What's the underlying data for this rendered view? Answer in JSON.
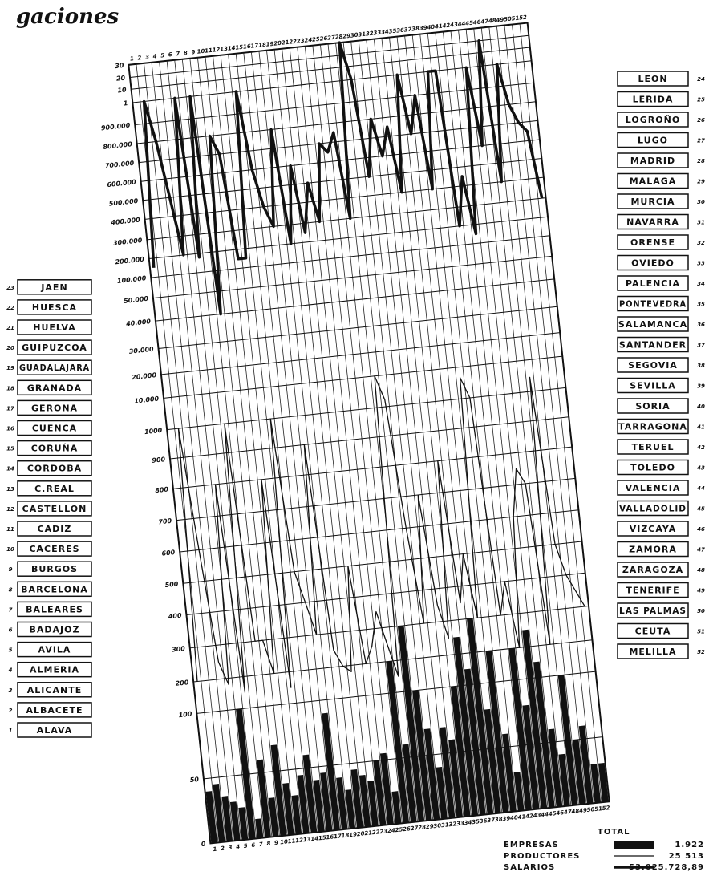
{
  "title_fragment": "gaciones",
  "chart_data": {
    "type": "combo",
    "categories": [
      1,
      2,
      3,
      4,
      5,
      6,
      7,
      8,
      9,
      10,
      11,
      12,
      13,
      14,
      15,
      16,
      17,
      18,
      19,
      20,
      21,
      22,
      23,
      24,
      25,
      26,
      27,
      28,
      29,
      30,
      31,
      32,
      33,
      34,
      35,
      36,
      37,
      38,
      39,
      40,
      41,
      42,
      43,
      44,
      45,
      46,
      47,
      48,
      49,
      50,
      51,
      52
    ],
    "yticks": [
      {
        "value": 30000000,
        "label": "30"
      },
      {
        "value": 20000000,
        "label": "20"
      },
      {
        "value": 10000000,
        "label": "10"
      },
      {
        "value": 1000000,
        "label": "1"
      },
      {
        "value": 900000,
        "label": "900.000"
      },
      {
        "value": 800000,
        "label": "800.000"
      },
      {
        "value": 700000,
        "label": "700.000"
      },
      {
        "value": 600000,
        "label": "600.000"
      },
      {
        "value": 500000,
        "label": "500.000"
      },
      {
        "value": 400000,
        "label": "400.000"
      },
      {
        "value": 300000,
        "label": "300.000"
      },
      {
        "value": 200000,
        "label": "200.000"
      },
      {
        "value": 100000,
        "label": "100.000"
      },
      {
        "value": 50000,
        "label": "50.000"
      },
      {
        "value": 40000,
        "label": "40.000"
      },
      {
        "value": 30000,
        "label": "30.000"
      },
      {
        "value": 20000,
        "label": "20.000"
      },
      {
        "value": 10000,
        "label": "10.000"
      },
      1000,
      900,
      800,
      700,
      600,
      500,
      400,
      300,
      200,
      100,
      50,
      0
    ],
    "grid": true,
    "series": [
      {
        "name": "EMPRESAS",
        "kind": "bar",
        "color": "#111",
        "total": "1.922",
        "values": [
          40,
          45,
          35,
          30,
          25,
          100,
          15,
          60,
          30,
          70,
          40,
          30,
          45,
          60,
          40,
          45,
          90,
          40,
          30,
          45,
          40,
          35,
          50,
          55,
          25,
          200,
          60,
          300,
          100,
          70,
          40,
          70,
          60,
          100,
          250,
          150,
          300,
          80,
          200,
          60,
          30,
          200,
          80,
          250,
          150,
          60,
          40,
          100,
          50,
          60,
          30,
          30
        ]
      },
      {
        "name": "PRODUCTORES",
        "kind": "thin-line",
        "color": "#111",
        "total": "25 513",
        "values": [
          200,
          1000,
          600,
          250,
          180,
          800,
          150,
          1000,
          300,
          300,
          200,
          800,
          150,
          1000,
          500,
          400,
          300,
          900,
          250,
          200,
          180,
          500,
          200,
          250,
          350,
          250,
          150,
          10000,
          3000,
          600,
          300,
          700,
          350,
          250,
          800,
          350,
          500,
          300,
          7000,
          1000,
          300,
          400,
          200,
          600,
          750,
          700,
          200,
          5000,
          500,
          400,
          350,
          300
        ]
      },
      {
        "name": "SALARIOS",
        "kind": "thick-line",
        "color": "#111",
        "total": "53.025.728,89",
        "values": [
          150000,
          1000000,
          800000,
          500000,
          200000,
          1000000,
          180000,
          1000000,
          40000,
          800000,
          700000,
          150000,
          150000,
          1200000,
          600000,
          400000,
          300000,
          800000,
          200000,
          600000,
          250000,
          500000,
          300000,
          700000,
          650000,
          750000,
          300000,
          30000000,
          1500000,
          500000,
          800000,
          600000,
          750000,
          400000,
          1000000,
          700000,
          900000,
          400000,
          1000000,
          1000000,
          200000,
          450000,
          150000,
          1000000,
          600000,
          20000000,
          400000,
          1200000,
          800000,
          700000,
          650000,
          300000
        ]
      }
    ],
    "legend_heading": "TOTAL"
  },
  "provinces": [
    {
      "number": 1,
      "name": "ALAVA"
    },
    {
      "number": 2,
      "name": "ALBACETE"
    },
    {
      "number": 3,
      "name": "ALICANTE"
    },
    {
      "number": 4,
      "name": "ALMERIA"
    },
    {
      "number": 5,
      "name": "AVILA"
    },
    {
      "number": 6,
      "name": "BADAJOZ"
    },
    {
      "number": 7,
      "name": "BALEARES"
    },
    {
      "number": 8,
      "name": "BARCELONA"
    },
    {
      "number": 9,
      "name": "BURGOS"
    },
    {
      "number": 10,
      "name": "CACERES"
    },
    {
      "number": 11,
      "name": "CADIZ"
    },
    {
      "number": 12,
      "name": "CASTELLON"
    },
    {
      "number": 13,
      "name": "C.REAL"
    },
    {
      "number": 14,
      "name": "CORDOBA"
    },
    {
      "number": 15,
      "name": "CORUÑA"
    },
    {
      "number": 16,
      "name": "CUENCA"
    },
    {
      "number": 17,
      "name": "GERONA"
    },
    {
      "number": 18,
      "name": "GRANADA"
    },
    {
      "number": 19,
      "name": "GUADALAJARA"
    },
    {
      "number": 20,
      "name": "GUIPUZCOA"
    },
    {
      "number": 21,
      "name": "HUELVA"
    },
    {
      "number": 22,
      "name": "HUESCA"
    },
    {
      "number": 23,
      "name": "JAEN"
    },
    {
      "number": 24,
      "name": "LEON"
    },
    {
      "number": 25,
      "name": "LERIDA"
    },
    {
      "number": 26,
      "name": "LOGROÑO"
    },
    {
      "number": 27,
      "name": "LUGO"
    },
    {
      "number": 28,
      "name": "MADRID"
    },
    {
      "number": 29,
      "name": "MALAGA"
    },
    {
      "number": 30,
      "name": "MURCIA"
    },
    {
      "number": 31,
      "name": "NAVARRA"
    },
    {
      "number": 32,
      "name": "ORENSE"
    },
    {
      "number": 33,
      "name": "OVIEDO"
    },
    {
      "number": 34,
      "name": "PALENCIA"
    },
    {
      "number": 35,
      "name": "PONTEVEDRA"
    },
    {
      "number": 36,
      "name": "SALAMANCA"
    },
    {
      "number": 37,
      "name": "SANTANDER"
    },
    {
      "number": 38,
      "name": "SEGOVIA"
    },
    {
      "number": 39,
      "name": "SEVILLA"
    },
    {
      "number": 40,
      "name": "SORIA"
    },
    {
      "number": 41,
      "name": "TARRAGONA"
    },
    {
      "number": 42,
      "name": "TERUEL"
    },
    {
      "number": 43,
      "name": "TOLEDO"
    },
    {
      "number": 44,
      "name": "VALENCIA"
    },
    {
      "number": 45,
      "name": "VALLADOLID"
    },
    {
      "number": 46,
      "name": "VIZCAYA"
    },
    {
      "number": 47,
      "name": "ZAMORA"
    },
    {
      "number": 48,
      "name": "ZARAGOZA"
    },
    {
      "number": 49,
      "name": "TENERIFE"
    },
    {
      "number": 50,
      "name": "LAS PALMAS"
    },
    {
      "number": 51,
      "name": "CEUTA"
    },
    {
      "number": 52,
      "name": "MELILLA"
    }
  ]
}
